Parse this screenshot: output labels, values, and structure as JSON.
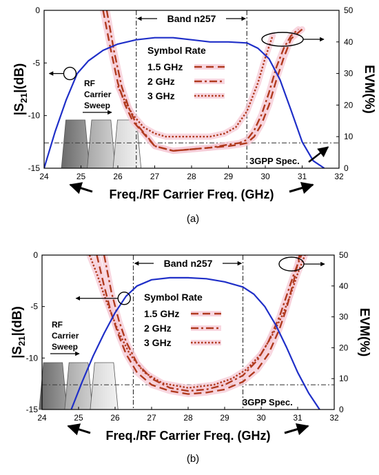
{
  "figure": {
    "panel_a_caption": "(a)",
    "panel_b_caption": "(b)"
  },
  "chart_data": [
    {
      "id": "a",
      "type": "line",
      "caption": "(a)",
      "xlabel": "Freq./RF Carrier Freq. (GHz)",
      "ylabel_left": "|S21|(dB)",
      "ylabel_right": "EVM(%)",
      "xlim": [
        24,
        32
      ],
      "ylim_left": [
        -15,
        0
      ],
      "ylim_right": [
        0,
        50
      ],
      "x_ticks": [
        24,
        25,
        26,
        27,
        28,
        29,
        30,
        31,
        32
      ],
      "y_ticks_left": [
        -15,
        -10,
        -5,
        0
      ],
      "y_ticks_right": [
        0,
        10,
        20,
        30,
        40,
        50
      ],
      "grid": false,
      "band_label": "Band n257",
      "band_range": [
        26.5,
        29.5
      ],
      "spec_label": "3GPP Spec.",
      "spec_evm": 8,
      "legend_title": "Symbol Rate",
      "legend_placement": "top-center",
      "sweep_label": [
        "RF",
        "Carrier",
        "Sweep"
      ],
      "colors": {
        "s21": "#1f2fc8",
        "evm": "#b03a1e",
        "band": "#333333",
        "spec": "#444444",
        "halo": "#f6c9d6"
      },
      "s21": {
        "name": "|S21|",
        "axis": "left",
        "x": [
          24.0,
          24.3,
          24.6,
          24.9,
          25.2,
          25.6,
          26.0,
          26.5,
          27.0,
          27.5,
          28.0,
          28.5,
          29.0,
          29.5,
          29.8,
          30.1,
          30.4,
          30.7,
          31.0,
          31.3,
          31.6
        ],
        "y": [
          -15.0,
          -11.5,
          -8.5,
          -6.0,
          -4.8,
          -3.8,
          -3.2,
          -2.8,
          -2.6,
          -2.6,
          -2.8,
          -3.0,
          -3.0,
          -3.1,
          -3.6,
          -4.6,
          -6.6,
          -9.5,
          -12.5,
          -14.3,
          -15.0
        ]
      },
      "series": [
        {
          "name": "1.5 GHz",
          "axis": "right",
          "x": [
            25.6,
            25.8,
            26.0,
            26.2,
            26.4,
            26.7,
            27.0,
            27.5,
            28.0,
            28.5,
            29.0,
            29.3,
            29.5,
            29.7,
            29.9,
            30.1,
            30.3,
            30.5,
            30.7,
            31.0
          ],
          "y": [
            50,
            38,
            27,
            20,
            15,
            11,
            7,
            5.5,
            6,
            6.5,
            7,
            7.5,
            8,
            10,
            14,
            20,
            28,
            35,
            41,
            44
          ]
        },
        {
          "name": "2 GHz",
          "axis": "right",
          "x": [
            25.7,
            25.9,
            26.1,
            26.3,
            26.5,
            26.8,
            27.0,
            27.5,
            28.0,
            28.5,
            29.0,
            29.3,
            29.5,
            29.7,
            29.9,
            30.1,
            30.3,
            30.5,
            30.7,
            30.9
          ],
          "y": [
            50,
            37,
            26,
            19,
            14,
            10,
            7,
            5.5,
            6,
            6.5,
            7.5,
            8,
            9,
            12,
            17,
            24,
            32,
            38,
            42,
            44
          ]
        },
        {
          "name": "3 GHz",
          "axis": "right",
          "x": [
            26.0,
            26.2,
            26.4,
            26.7,
            27.0,
            27.3,
            27.6,
            28.0,
            28.5,
            28.9,
            29.2,
            29.5,
            29.8,
            30.0,
            30.2
          ],
          "y": [
            26,
            21,
            17,
            13,
            11,
            10,
            10,
            10,
            10,
            11,
            13,
            18,
            27,
            35,
            42
          ]
        }
      ]
    },
    {
      "id": "b",
      "type": "line",
      "caption": "(b)",
      "xlabel": "Freq./RF Carrier Freq. (GHz)",
      "ylabel_left": "|S21|(dB)",
      "ylabel_right": "EVM(%)",
      "xlim": [
        24,
        32
      ],
      "ylim_left": [
        -15,
        0
      ],
      "ylim_right": [
        0,
        50
      ],
      "x_ticks": [
        24,
        25,
        26,
        27,
        28,
        29,
        30,
        31,
        32
      ],
      "y_ticks_left": [
        -15,
        -10,
        -5,
        0
      ],
      "y_ticks_right": [
        0,
        10,
        20,
        30,
        40,
        50
      ],
      "grid": false,
      "band_label": "Band n257",
      "band_range": [
        26.5,
        29.5
      ],
      "spec_label": "3GPP Spec.",
      "spec_evm": 8,
      "legend_title": "Symbol Rate",
      "legend_placement": "center-right",
      "sweep_label": [
        "RF",
        "Carrier",
        "Sweep"
      ],
      "colors": {
        "s21": "#1f2fc8",
        "evm": "#b03a1e",
        "band": "#333333",
        "spec": "#444444",
        "halo": "#f6c9d6"
      },
      "s21": {
        "name": "|S21|",
        "axis": "left",
        "x": [
          24.8,
          25.1,
          25.4,
          25.7,
          26.0,
          26.3,
          26.6,
          27.0,
          27.5,
          28.0,
          28.5,
          29.0,
          29.5,
          29.8,
          30.1,
          30.4,
          30.7,
          31.0,
          31.3,
          31.6
        ],
        "y": [
          -15.0,
          -12.3,
          -9.8,
          -7.6,
          -5.6,
          -4.0,
          -3.0,
          -2.4,
          -2.2,
          -2.2,
          -2.3,
          -2.6,
          -3.1,
          -3.8,
          -5.0,
          -6.8,
          -9.0,
          -11.4,
          -13.4,
          -15.0
        ]
      },
      "series": [
        {
          "name": "1.5 GHz",
          "axis": "right",
          "x": [
            25.5,
            25.7,
            25.9,
            26.1,
            26.3,
            26.6,
            27.0,
            27.5,
            28.0,
            28.5,
            29.0,
            29.5,
            29.9,
            30.2,
            30.5,
            30.7,
            30.9,
            31.05
          ],
          "y": [
            50,
            40,
            31,
            24,
            18,
            12,
            8,
            6,
            5,
            5.5,
            6.5,
            9,
            13,
            18,
            26,
            33,
            42,
            50
          ]
        },
        {
          "name": "2 GHz",
          "axis": "right",
          "x": [
            25.7,
            25.9,
            26.1,
            26.3,
            26.6,
            27.0,
            27.5,
            28.0,
            28.5,
            29.0,
            29.5,
            29.9,
            30.2,
            30.5,
            30.7,
            30.9,
            31.1
          ],
          "y": [
            50,
            38,
            29,
            22,
            15,
            10,
            7,
            6,
            6.5,
            8,
            11,
            16,
            22,
            30,
            37,
            44,
            50
          ]
        },
        {
          "name": "3 GHz",
          "axis": "right",
          "x": [
            25.3,
            25.5,
            25.7,
            25.9,
            26.1,
            26.4,
            26.8,
            27.3,
            28.0,
            28.7,
            29.2,
            29.6,
            30.0,
            30.3,
            30.6,
            30.8,
            31.0,
            31.2
          ],
          "y": [
            50,
            44,
            37,
            31,
            25,
            18,
            12,
            8.5,
            7,
            8,
            10,
            13,
            18,
            24,
            31,
            37,
            44,
            50
          ]
        }
      ]
    }
  ]
}
